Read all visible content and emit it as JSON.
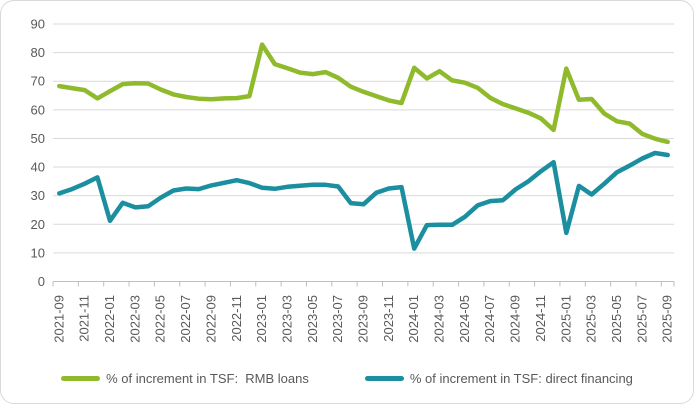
{
  "colors": {
    "rmb_loans": "#8FBA2C",
    "direct_financing": "#1B8E9F",
    "gridline": "#D9D9D9",
    "axis_line": "#BFBFBF",
    "tick_text": "#595959",
    "frame_border": "#D9D9D9",
    "background": "#FFFFFF"
  },
  "legend": {
    "rmb_loans_label": "% of increment in TSF:  RMB loans",
    "direct_financing_label": "% of increment in TSF: direct financing"
  },
  "chart_data": {
    "type": "line",
    "title": "",
    "xlabel": "",
    "ylabel": "",
    "ylim": [
      0,
      90
    ],
    "y_ticks": [
      0,
      10,
      20,
      30,
      40,
      50,
      60,
      70,
      80,
      90
    ],
    "grid": "horizontal",
    "legend_position": "bottom",
    "x_label_every": 2,
    "x": [
      "2021-09",
      "2021-10",
      "2021-11",
      "2021-12",
      "2022-01",
      "2022-02",
      "2022-03",
      "2022-04",
      "2022-05",
      "2022-06",
      "2022-07",
      "2022-08",
      "2022-09",
      "2022-10",
      "2022-11",
      "2022-12",
      "2023-01",
      "2023-02",
      "2023-03",
      "2023-04",
      "2023-05",
      "2023-06",
      "2023-07",
      "2023-08",
      "2023-09",
      "2023-10",
      "2023-11",
      "2023-12",
      "2024-01",
      "2024-02",
      "2024-03",
      "2024-04",
      "2024-05",
      "2024-06",
      "2024-07",
      "2024-08",
      "2024-09",
      "2024-10",
      "2024-11",
      "2024-12",
      "2025-01",
      "2025-02",
      "2025-03",
      "2025-04",
      "2025-05",
      "2025-06",
      "2025-07",
      "2025-08",
      "2025-09"
    ],
    "series": [
      {
        "name": "% of increment in TSF:  RMB loans",
        "color": "#8FBA2C",
        "values": [
          68.3,
          67.6,
          66.9,
          64.0,
          66.5,
          69.0,
          69.3,
          69.2,
          67.1,
          65.4,
          64.5,
          63.9,
          63.7,
          64.0,
          64.1,
          64.8,
          82.8,
          76.0,
          74.5,
          73.0,
          72.5,
          73.2,
          71.2,
          68.1,
          66.3,
          64.8,
          63.3,
          62.4,
          74.7,
          71.0,
          73.5,
          70.3,
          69.5,
          67.7,
          64.2,
          62.0,
          60.5,
          59.0,
          57.0,
          53.0,
          74.4,
          63.5,
          63.8,
          58.7,
          56.0,
          55.2,
          51.6,
          49.9,
          48.8
        ]
      },
      {
        "name": "% of increment in TSF: direct financing",
        "color": "#1B8E9F",
        "values": [
          30.8,
          32.3,
          34.2,
          36.4,
          21.2,
          27.5,
          25.9,
          26.3,
          29.3,
          31.8,
          32.5,
          32.3,
          33.6,
          34.5,
          35.4,
          34.4,
          32.8,
          32.4,
          33.1,
          33.5,
          33.8,
          33.8,
          33.2,
          27.4,
          27.0,
          31.0,
          32.5,
          33.0,
          11.5,
          19.7,
          19.8,
          19.8,
          22.6,
          26.6,
          28.1,
          28.4,
          32.2,
          35.0,
          38.5,
          41.7,
          17.0,
          33.4,
          30.4,
          34.2,
          38.2,
          40.5,
          43.0,
          44.9,
          44.2
        ]
      }
    ]
  }
}
